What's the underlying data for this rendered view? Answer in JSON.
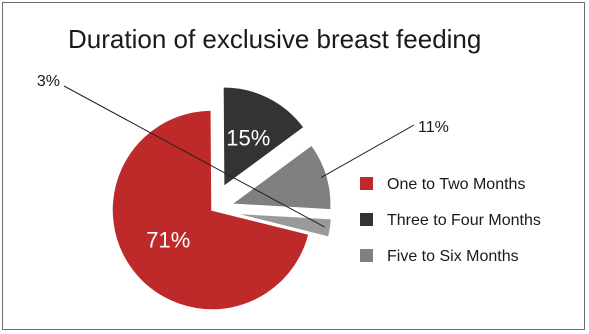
{
  "chart_data": {
    "type": "pie",
    "title": "Duration of exclusive breast feeding",
    "categories": [
      "One to Two Months",
      "Three to Four Months",
      "Five to Six Months"
    ],
    "slices": [
      {
        "name": "One to Two Months",
        "value": 71,
        "label": "71%",
        "color": "#be2a2a"
      },
      {
        "name": "Three to Four Months",
        "value": 15,
        "label": "15%",
        "color": "#333333"
      },
      {
        "name": "Five to Six Months",
        "value": 11,
        "label": "11%",
        "color": "#808080"
      },
      {
        "name": "",
        "value": 3,
        "label": "3%",
        "color": "#9a9a9a"
      }
    ],
    "legend": {
      "position": "right",
      "entries": [
        {
          "label": "One to Two Months",
          "color": "#be2a2a"
        },
        {
          "label": "Three to Four Months",
          "color": "#333333"
        },
        {
          "label": "Five to Six Months",
          "color": "#808080"
        }
      ]
    }
  }
}
